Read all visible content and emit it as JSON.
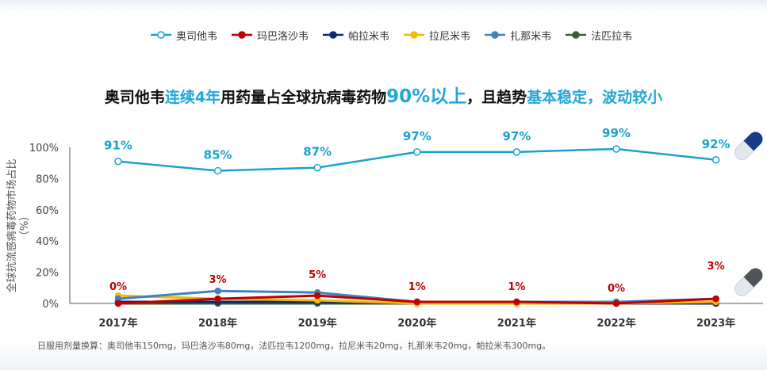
{
  "legend_title": "",
  "colors": {
    "oseltamivir": "#1aa1cf",
    "baloxavir": "#c00000",
    "peramivir": "#0b2a6f",
    "laninamivir": "#f6b800",
    "zanamivir": "#3f82c0",
    "favipiravir": "#3a5f2e"
  },
  "headline": {
    "p1": "奥司他韦",
    "p2": "连续4年",
    "p3": "用药量占全球抗病毒药物",
    "p4": "90%以上",
    "p5": "，且趋势",
    "p6": "基本稳定，波动较小"
  },
  "footnote": "日服用剂量换算：奥司他韦150mg，玛巴洛沙韦80mg，法匹拉韦1200mg，拉尼米韦20mg，扎那米韦20mg，帕拉米韦300mg。",
  "chart_data": {
    "type": "line",
    "title": "",
    "xlabel": "",
    "ylabel": "全球抗流感病毒药物市场占比（%）",
    "ylabel_line1": "全球抗流感病毒药物市场占比",
    "ylabel_line2": "（%）",
    "ylim": [
      0,
      100
    ],
    "yticks": [
      "0%",
      "20%",
      "40%",
      "60%",
      "80%",
      "100%"
    ],
    "grid": false,
    "legend_position": "top",
    "categories": [
      "2017年",
      "2018年",
      "2019年",
      "2020年",
      "2021年",
      "2022年",
      "2023年"
    ],
    "series": [
      {
        "name": "奥司他韦",
        "key": "oseltamivir",
        "values": [
          91,
          85,
          87,
          97,
          97,
          99,
          92
        ],
        "labels": [
          "91%",
          "85%",
          "87%",
          "97%",
          "97%",
          "99%",
          "92%"
        ]
      },
      {
        "name": "玛巴洛沙韦",
        "key": "baloxavir",
        "values": [
          0,
          3,
          5,
          1,
          1,
          0,
          3
        ],
        "labels": [
          "0%",
          "3%",
          "5%",
          "1%",
          "1%",
          "0%",
          "3%"
        ]
      },
      {
        "name": "帕拉米韦",
        "key": "peramivir",
        "values": [
          1,
          1,
          1,
          0,
          0,
          0,
          0
        ]
      },
      {
        "name": "拉尼米韦",
        "key": "laninamivir",
        "values": [
          5,
          3,
          2,
          0,
          0,
          0,
          1
        ]
      },
      {
        "name": "扎那米韦",
        "key": "zanamivir",
        "values": [
          3,
          8,
          7,
          1,
          1,
          1,
          3
        ]
      },
      {
        "name": "法匹拉韦",
        "key": "favipiravir",
        "values": [
          0,
          0,
          0,
          0,
          0,
          0,
          0
        ]
      }
    ]
  }
}
